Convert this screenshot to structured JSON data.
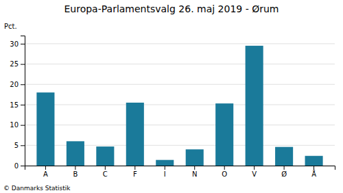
{
  "chart_data": {
    "type": "bar",
    "title": "Europa-Parlamentsvalg 26. maj 2019 - Ørum",
    "categories": [
      "A",
      "B",
      "C",
      "F",
      "I",
      "N",
      "O",
      "V",
      "Ø",
      "Å"
    ],
    "values": [
      18.0,
      6.0,
      4.7,
      15.5,
      1.4,
      4.0,
      15.3,
      29.5,
      4.6,
      2.4
    ],
    "color": "#1a7a9a",
    "ylabel": "Pct.",
    "ylim": [
      0,
      32
    ],
    "yticks": [
      0,
      5,
      10,
      15,
      20,
      25,
      30
    ],
    "grid": true,
    "footer": "© Danmarks Statistik"
  }
}
